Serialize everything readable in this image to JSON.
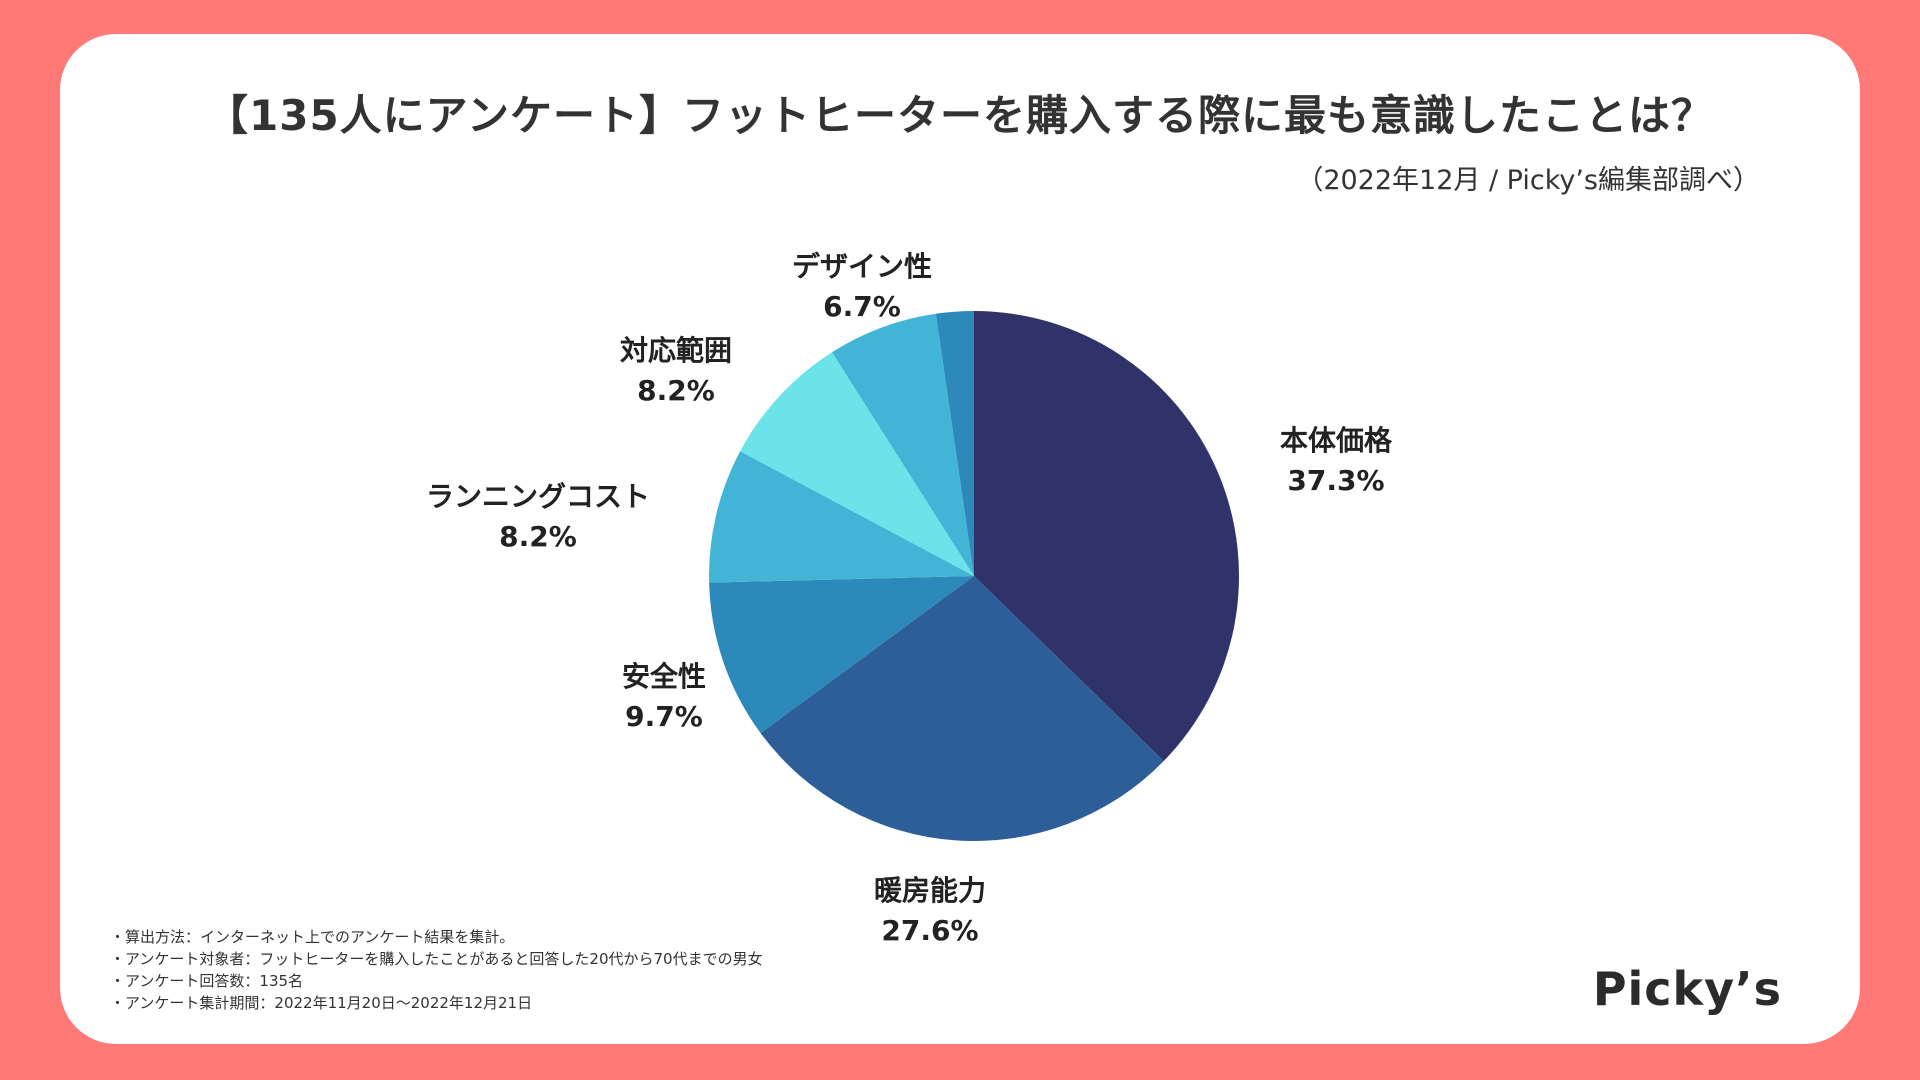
{
  "header": {
    "title": "【135人にアンケート】フットヒーターを購入する際に最も意識したことは？",
    "source": "（2022年12月 / Picky’s編集部調べ）"
  },
  "chart_data": {
    "type": "pie",
    "title": "【135人にアンケート】フットヒーターを購入する際に最も意識したことは？",
    "slices": [
      {
        "label": "本体価格",
        "value": 37.3,
        "display": "37.3%",
        "color": "#2f336a"
      },
      {
        "label": "暖房能力",
        "value": 27.6,
        "display": "27.6%",
        "color": "#2e5e97"
      },
      {
        "label": "安全性",
        "value": 9.7,
        "display": "9.7%",
        "color": "#2d89b9"
      },
      {
        "label": "ランニングコスト",
        "value": 8.2,
        "display": "8.2%",
        "color": "#42b5d6"
      },
      {
        "label": "対応範囲",
        "value": 8.2,
        "display": "8.2%",
        "color": "#6be3e9"
      },
      {
        "label": "デザイン性",
        "value": 6.7,
        "display": "6.7%",
        "color": "#42b5d6"
      },
      {
        "label": "",
        "value": 2.3,
        "display": "",
        "color": "#2d89b9"
      }
    ],
    "start": "12 o'clock",
    "direction": "clockwise",
    "legend": "none"
  },
  "notes": [
    "・算出方法：インターネット上でのアンケート結果を集計。",
    "・アンケート対象者：フットヒーターを購入したことがあると回答した20代から70代までの男女",
    "・アンケート回答数：135名",
    "・アンケート集計期間：2022年11月20日〜2022年12月21日"
  ],
  "brand": {
    "logo_text": "Picky’s"
  },
  "colors": {
    "frame": "#ff7a76",
    "card": "#ffffff",
    "text": "#333333"
  }
}
